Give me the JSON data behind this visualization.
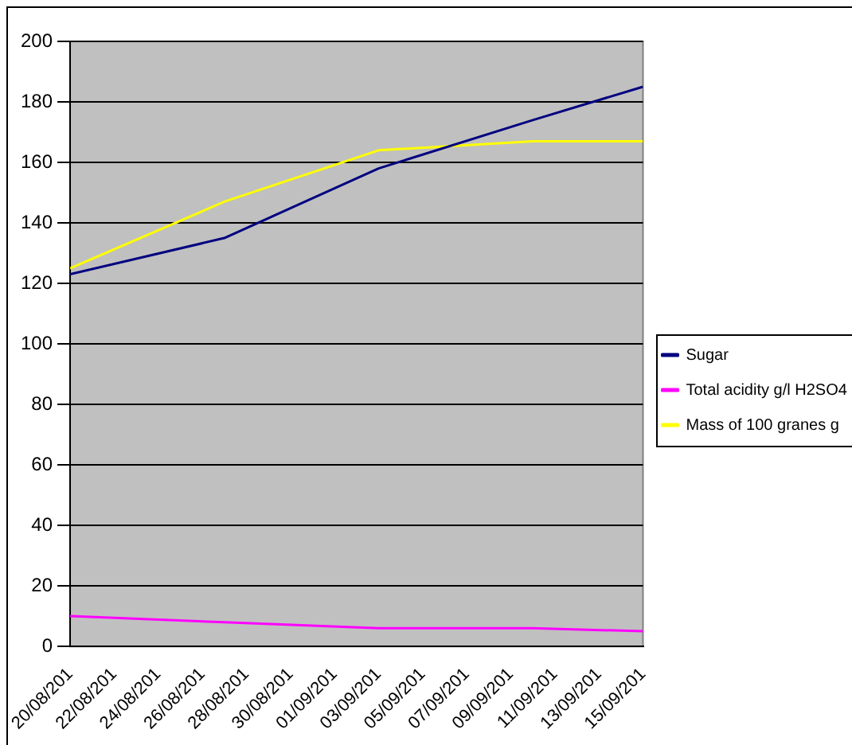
{
  "chart_data": {
    "type": "line",
    "series": [
      {
        "name": "Sugar",
        "color": "#000080",
        "x": [
          "--08-20",
          "--08-27",
          "--09-03",
          "--09-10",
          "--09-15"
        ],
        "values": [
          123,
          135,
          158,
          174,
          185
        ]
      },
      {
        "name": "Total acidity g/l H2SO4",
        "color": "#ff00ff",
        "x": [
          "--08-20",
          "--08-27",
          "--09-03",
          "--09-10",
          "--09-15"
        ],
        "values": [
          10,
          8,
          6,
          6,
          5
        ]
      },
      {
        "name": "Mass of 100 granes g",
        "color": "#ffff00",
        "x": [
          "--08-20",
          "--08-27",
          "--09-03",
          "--09-10",
          "--09-15"
        ],
        "values": [
          125,
          147,
          164,
          167,
          167
        ]
      }
    ],
    "xlim": [
      "--08-20",
      "--09-15"
    ],
    "xticks": [
      {
        "value": "--08-20",
        "label": "20/08/201"
      },
      {
        "value": "--08-22",
        "label": "22/08/201"
      },
      {
        "value": "--08-24",
        "label": "24/08/201"
      },
      {
        "value": "--08-26",
        "label": "26/08/201"
      },
      {
        "value": "--08-28",
        "label": "28/08/201"
      },
      {
        "value": "--08-30",
        "label": "30/08/201"
      },
      {
        "value": "--09-01",
        "label": "01/09/201"
      },
      {
        "value": "--09-03",
        "label": "03/09/201"
      },
      {
        "value": "--09-05",
        "label": "05/09/201"
      },
      {
        "value": "--09-07",
        "label": "07/09/201"
      },
      {
        "value": "--09-09",
        "label": "09/09/201"
      },
      {
        "value": "--09-11",
        "label": "11/09/201"
      },
      {
        "value": "--09-13",
        "label": "13/09/201"
      },
      {
        "value": "--09-15",
        "label": "15/09/201"
      }
    ],
    "ylim": [
      0,
      200
    ],
    "yticks": [
      0,
      20,
      40,
      60,
      80,
      100,
      120,
      140,
      160,
      180,
      200
    ],
    "grid": "y",
    "legend": "right",
    "marker": "none",
    "line_style": "solid"
  }
}
